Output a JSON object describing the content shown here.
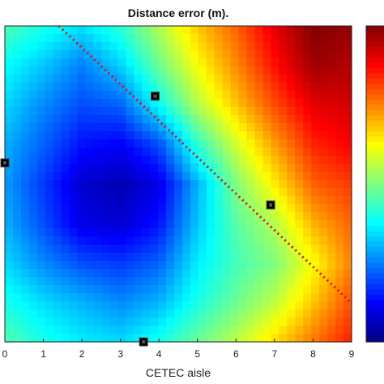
{
  "chart_data": {
    "type": "heatmap",
    "title": "Distance error (m).",
    "xlabel": "CETEC aisle",
    "ylabel": "",
    "xlim": [
      0,
      9
    ],
    "xticks": [
      "0",
      "1",
      "2",
      "3",
      "4",
      "5",
      "6",
      "7",
      "8",
      "9"
    ],
    "colormap": "jet",
    "grid": false,
    "colorbar": "right",
    "y_rows": 9,
    "values": [
      [
        0.45,
        0.4,
        0.35,
        0.42,
        0.55,
        0.68,
        0.78,
        0.9,
        1.0,
        0.98
      ],
      [
        0.38,
        0.32,
        0.25,
        0.33,
        0.48,
        0.62,
        0.74,
        0.86,
        0.97,
        0.95
      ],
      [
        0.34,
        0.26,
        0.2,
        0.22,
        0.38,
        0.55,
        0.68,
        0.8,
        0.9,
        0.92
      ],
      [
        0.3,
        0.22,
        0.14,
        0.12,
        0.2,
        0.42,
        0.58,
        0.72,
        0.84,
        0.88
      ],
      [
        0.28,
        0.18,
        0.08,
        0.05,
        0.1,
        0.3,
        0.5,
        0.64,
        0.78,
        0.82
      ],
      [
        0.3,
        0.2,
        0.1,
        0.08,
        0.14,
        0.32,
        0.46,
        0.55,
        0.7,
        0.78
      ],
      [
        0.34,
        0.26,
        0.2,
        0.18,
        0.22,
        0.36,
        0.44,
        0.5,
        0.62,
        0.75
      ],
      [
        0.4,
        0.34,
        0.3,
        0.26,
        0.3,
        0.4,
        0.48,
        0.56,
        0.68,
        0.8
      ],
      [
        0.46,
        0.4,
        0.36,
        0.34,
        0.4,
        0.48,
        0.56,
        0.66,
        0.76,
        0.85
      ]
    ],
    "markers": [
      {
        "x": 0.0,
        "y": 5.1
      },
      {
        "x": 3.9,
        "y": 7.0
      },
      {
        "x": 6.9,
        "y": 3.9
      },
      {
        "x": 3.6,
        "y": 0.0
      }
    ],
    "dotted_line": [
      {
        "x": 1.4,
        "y": 9.0
      },
      {
        "x": 9.0,
        "y": 1.1
      }
    ]
  }
}
